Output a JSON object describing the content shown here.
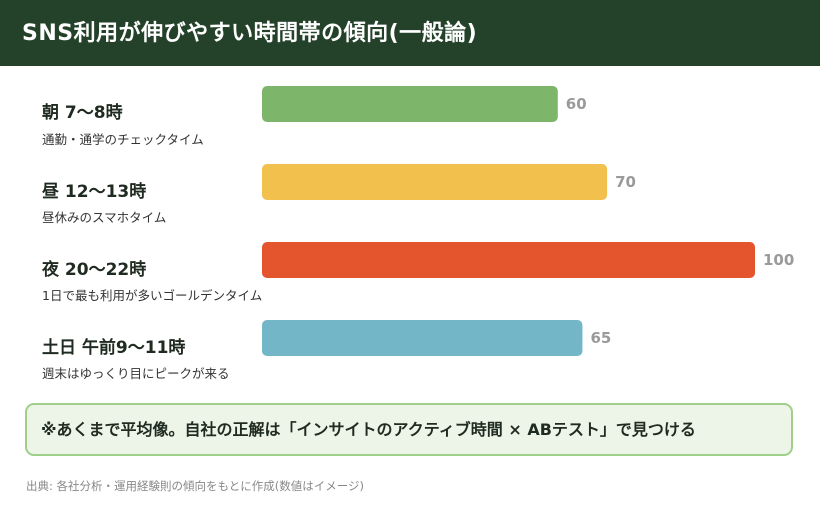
{
  "header": {
    "title": "SNS利用が伸びやすい時間帯の傾向(一般論)"
  },
  "colors": {
    "header_bg": "#24422a",
    "bar_morning": "#7db56a",
    "bar_noon": "#f2c04d",
    "bar_night": "#e4552d",
    "bar_weekend": "#72b6c7",
    "note_border": "#9fcf8b",
    "note_bg": "#edf5e8"
  },
  "chart_data": {
    "type": "bar",
    "orientation": "horizontal",
    "categories": [
      "朝 7〜8時",
      "昼 12〜13時",
      "夜 20〜22時",
      "土日 午前9〜11時"
    ],
    "descriptions": [
      "通勤・通学のチェックタイム",
      "昼休みのスマホタイム",
      "1日で最も利用が多いゴールデンタイム",
      "週末はゆっくり目にピークが来る"
    ],
    "values": [
      60,
      70,
      100,
      65
    ],
    "value_labels": [
      "60",
      "70",
      "100",
      "65"
    ],
    "colors": [
      "#7db56a",
      "#f2c04d",
      "#e4552d",
      "#72b6c7"
    ],
    "xlim": [
      0,
      100
    ],
    "grid": false,
    "legend": "none"
  },
  "note": {
    "text": "※あくまで平均像。自社の正解は「インサイトのアクティブ時間 × ABテスト」で見つける"
  },
  "source": {
    "text": "出典: 各社分析・運用経験則の傾向をもとに作成(数値はイメージ)"
  }
}
